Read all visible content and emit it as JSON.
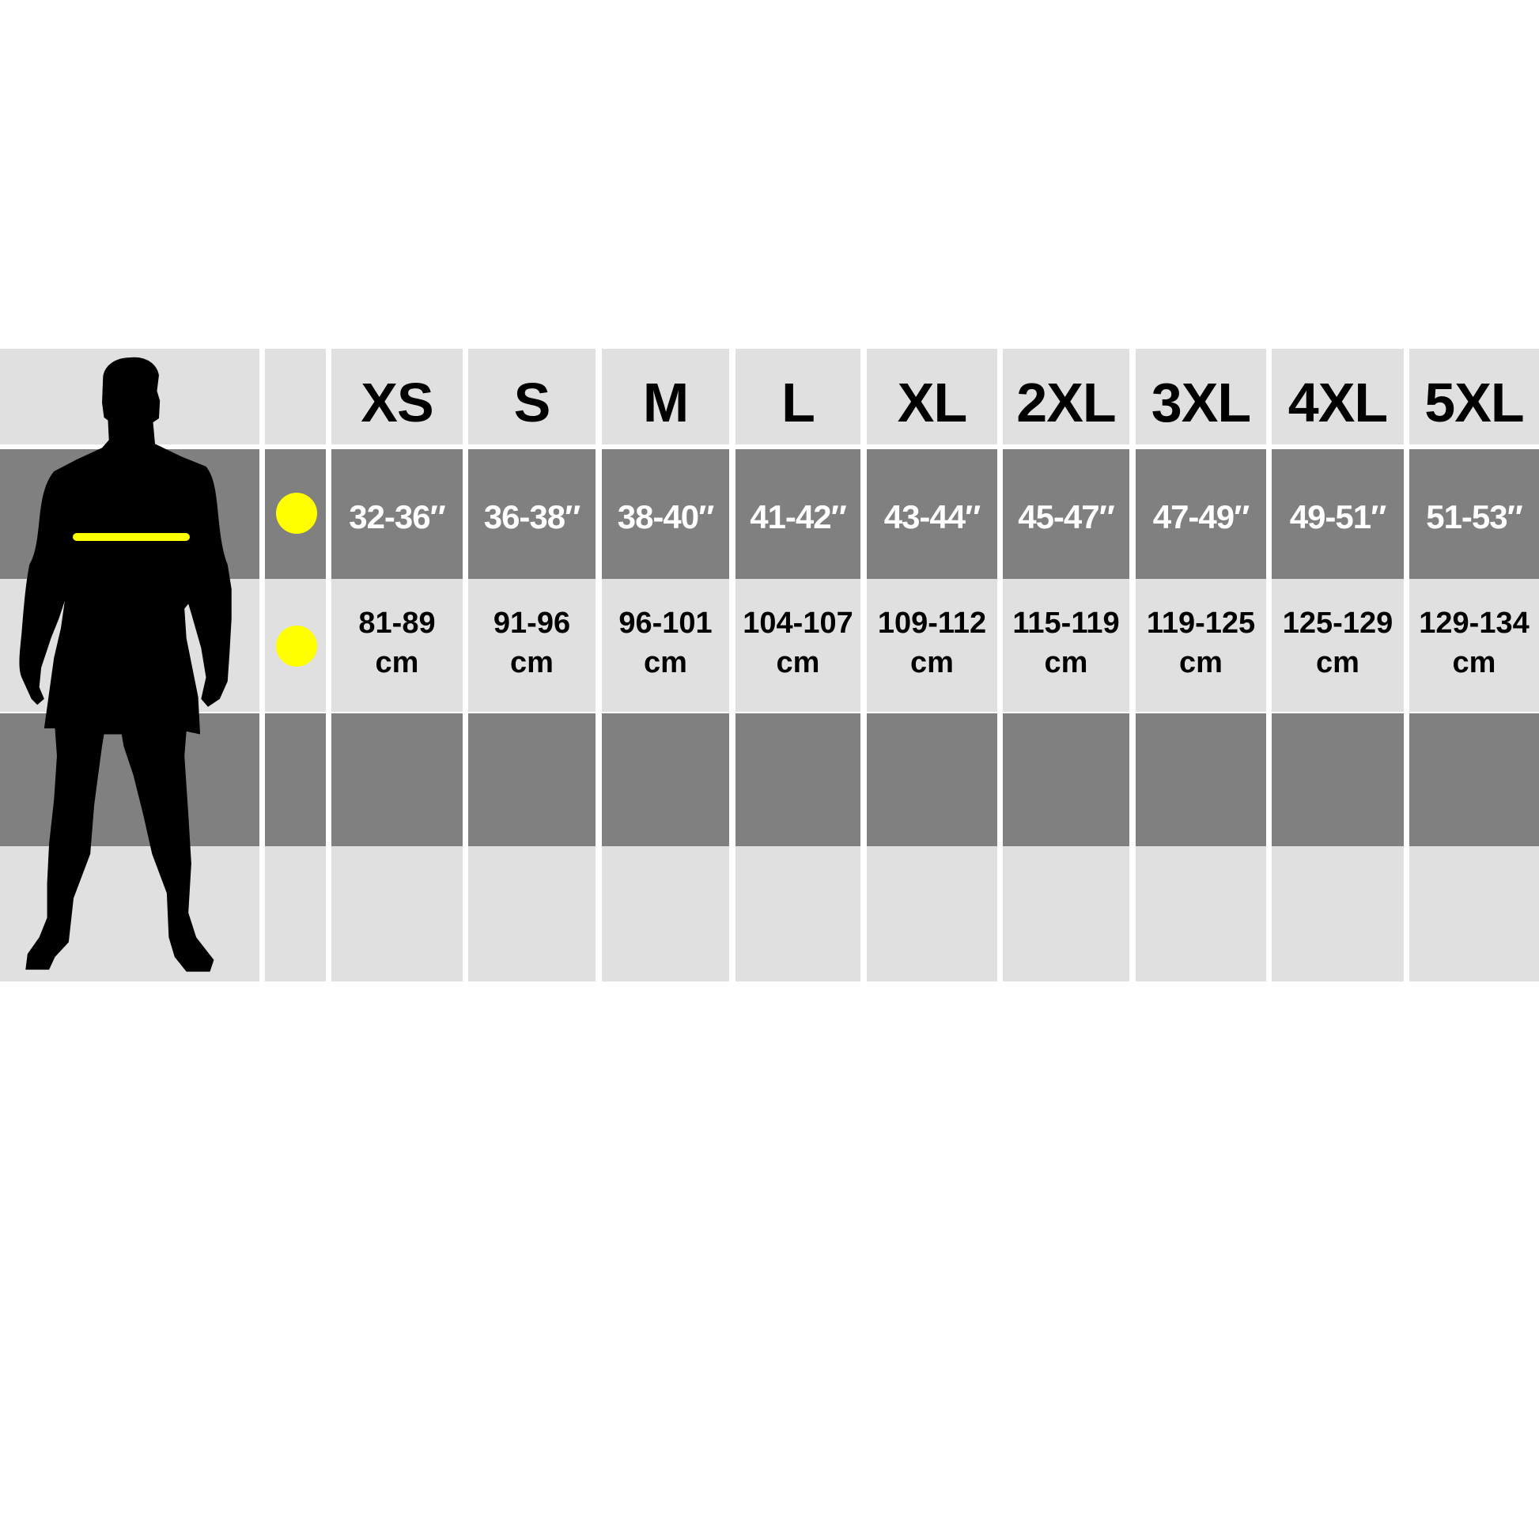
{
  "sizes": [
    "XS",
    "S",
    "M",
    "L",
    "XL",
    "2XL",
    "3XL",
    "4XL",
    "5XL"
  ],
  "inches": [
    "32-36″",
    "36-38″",
    "38-40″",
    "41-42″",
    "43-44″",
    "45-47″",
    "47-49″",
    "49-51″",
    "51-53″"
  ],
  "cm": [
    "81-89\ncm",
    "91-96\ncm",
    "96-101\ncm",
    "104-107\ncm",
    "109-112\ncm",
    "115-119\ncm",
    "119-125\ncm",
    "125-129\ncm",
    "129-134\ncm"
  ],
  "colors": {
    "light": "#e0e0e0",
    "dark": "#808080",
    "marker": "#ffff00",
    "figure": "#000000"
  },
  "icons": {
    "figure": "male-body-silhouette-icon",
    "marker": "yellow-dot-icon"
  }
}
